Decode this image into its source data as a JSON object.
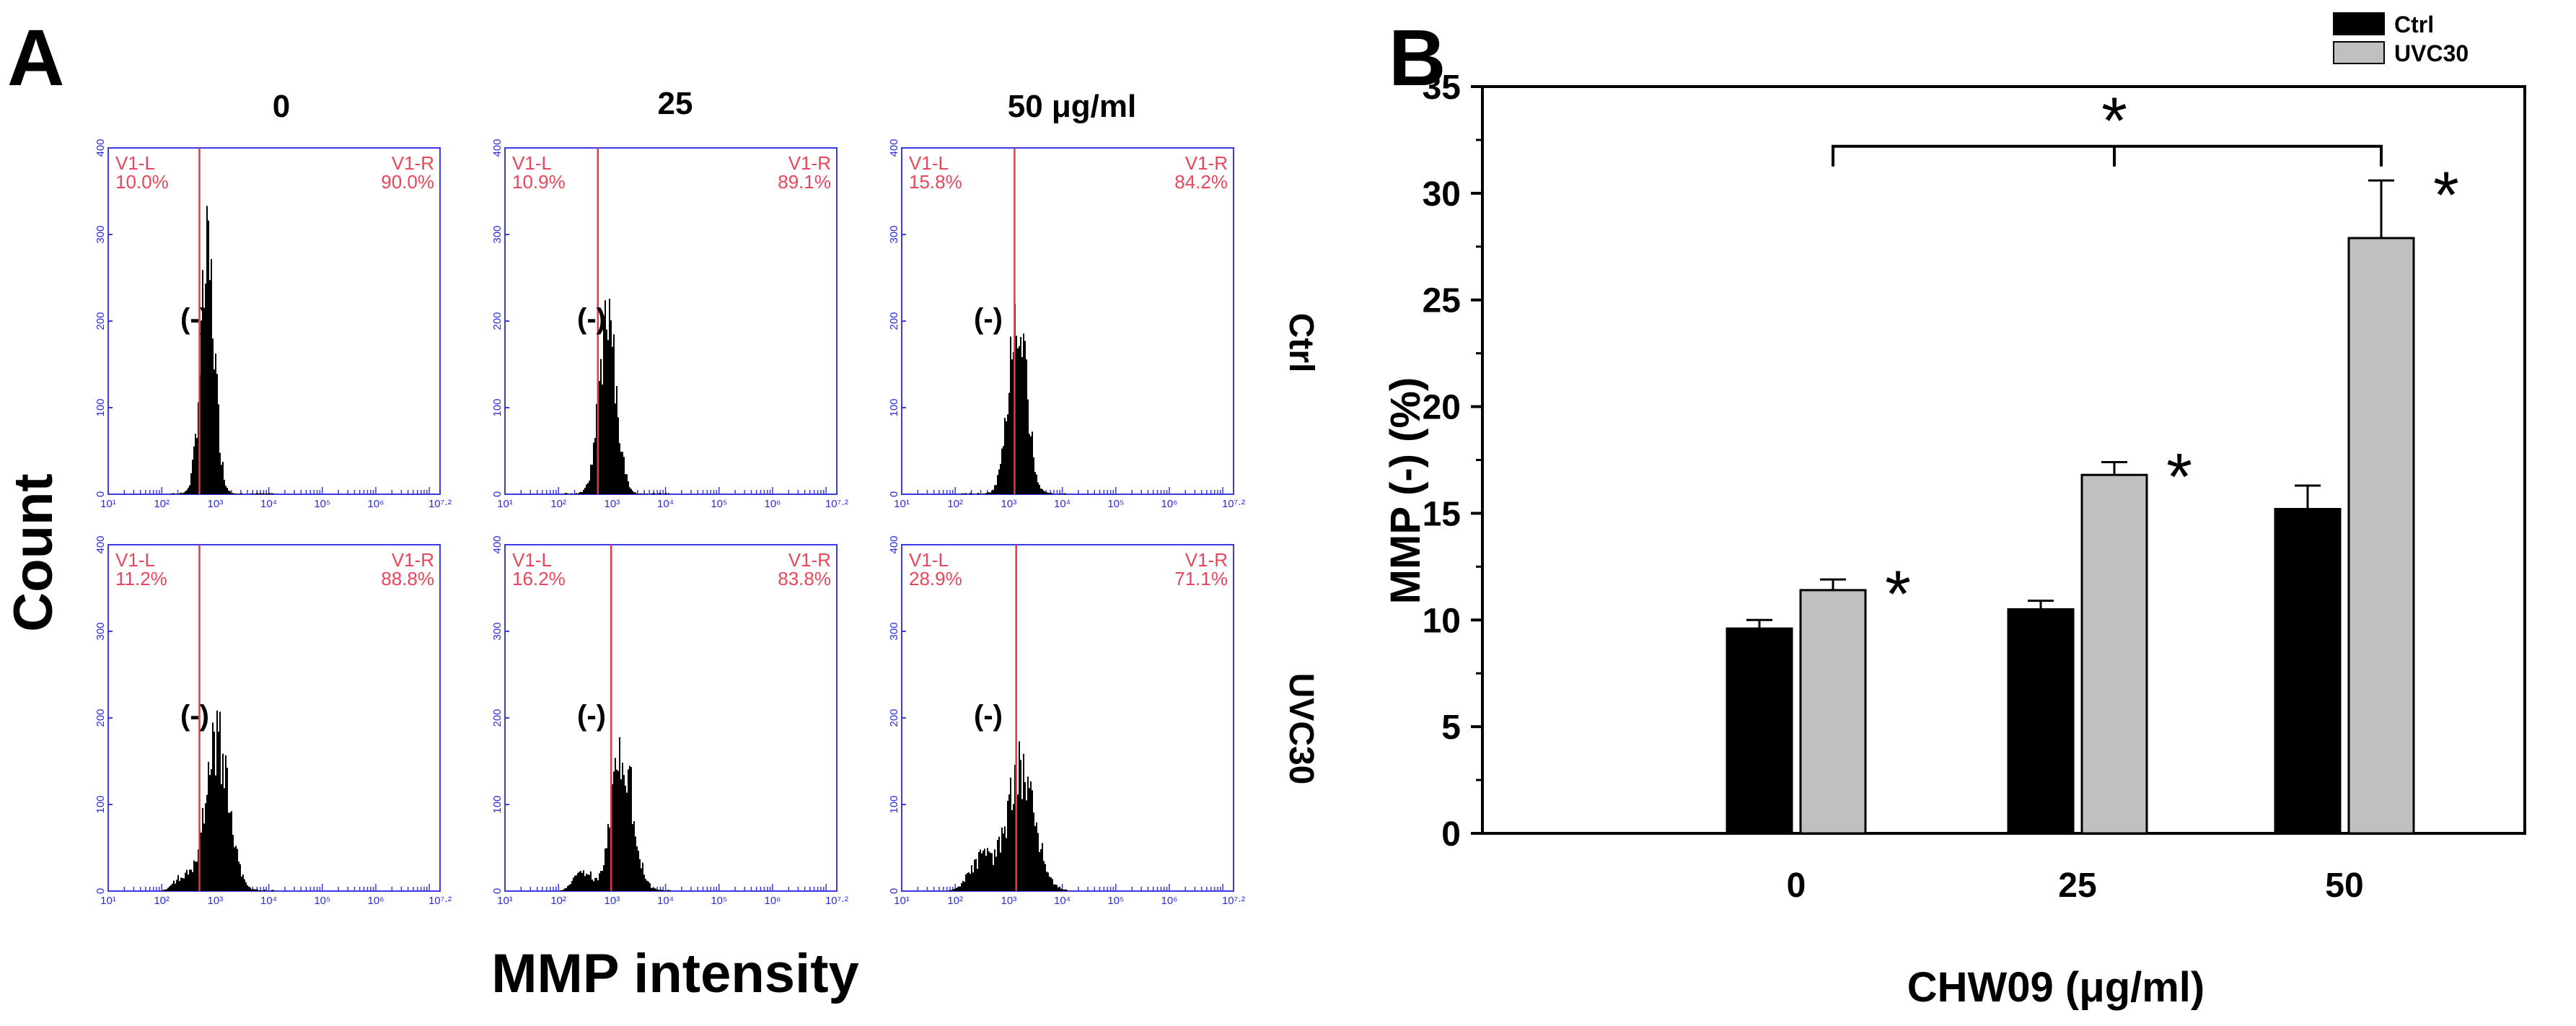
{
  "panel_a": {
    "letter": "A",
    "ylabel": "Count",
    "xlabel": "MMP intensity",
    "col_headers": [
      "0",
      "25",
      "50 μg/ml"
    ],
    "row_labels": [
      "Ctrl",
      "UVC30"
    ],
    "y_ticks": [
      "0",
      "100",
      "200",
      "300",
      "400"
    ],
    "x_ticks": [
      "10¹",
      "10²",
      "10³",
      "10⁴",
      "10⁵",
      "10⁶",
      "10⁷·²"
    ],
    "gate_left_label": "V1-L",
    "gate_right_label": "V1-R",
    "neg_label": "(-)",
    "plots": [
      {
        "row": "Ctrl",
        "dose": "0",
        "left_pct": "10.0%",
        "right_pct": "90.0%"
      },
      {
        "row": "Ctrl",
        "dose": "25",
        "left_pct": "10.9%",
        "right_pct": "89.1%"
      },
      {
        "row": "Ctrl",
        "dose": "50",
        "left_pct": "15.8%",
        "right_pct": "84.2%"
      },
      {
        "row": "UVC30",
        "dose": "0",
        "left_pct": "11.2%",
        "right_pct": "88.8%"
      },
      {
        "row": "UVC30",
        "dose": "25",
        "left_pct": "16.2%",
        "right_pct": "83.8%"
      },
      {
        "row": "UVC30",
        "dose": "50",
        "left_pct": "28.9%",
        "right_pct": "71.1%"
      }
    ]
  },
  "panel_b": {
    "letter": "B"
  },
  "chart_data": {
    "type": "bar",
    "categories": [
      "0",
      "25",
      "50"
    ],
    "series": [
      {
        "name": "Ctrl",
        "color": "#000000",
        "values": [
          9.6,
          10.5,
          15.2
        ],
        "errors": [
          0.4,
          0.4,
          1.1
        ]
      },
      {
        "name": "UVC30",
        "color": "#c0c0c0",
        "values": [
          11.4,
          16.8,
          27.9
        ],
        "errors": [
          0.5,
          0.6,
          2.7
        ]
      }
    ],
    "ylabel": "MMP (-) (%)",
    "xlabel": "CHW09 (μg/ml)",
    "ylim": [
      0,
      35
    ],
    "yticks": [
      0,
      5,
      10,
      15,
      20,
      25,
      30,
      35
    ],
    "legend_position": "top-right",
    "significance_marker": "*",
    "significance_bars": [
      "0",
      "25",
      "50"
    ],
    "significant_series": "UVC30"
  }
}
